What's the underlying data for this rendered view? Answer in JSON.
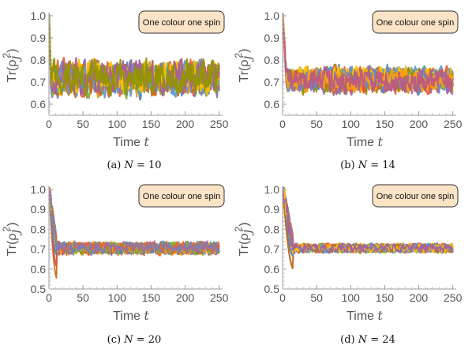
{
  "figure": {
    "colors": [
      "#5E81B5",
      "#E19C24",
      "#8FB032",
      "#EB6235",
      "#8778B3",
      "#C56E1A",
      "#5D9EC7",
      "#FFBF00",
      "#A5609D",
      "#929600",
      "#E95536",
      "#6685D9",
      "#F89F13",
      "#BC5B80",
      "#47B66D"
    ]
  },
  "chart_data": [
    {
      "type": "line",
      "panel": "a",
      "annotation": "One colour one spin",
      "caption_label": "(a)",
      "caption_var": "N",
      "caption_rest": " = 10",
      "N": 10,
      "xlabel_text": "Time ",
      "xlabel_var": "t",
      "ylabel": "Tr(ρ",
      "ylabel_sub": "j",
      "ylabel_sup": "2",
      "ylabel_end": ")",
      "xlim": [
        0,
        255
      ],
      "ylim": [
        0.55,
        1.0
      ],
      "xticks": [
        "0",
        "50",
        "100",
        "150",
        "200",
        "250"
      ],
      "xtick_values": [
        0,
        50,
        100,
        150,
        200,
        250
      ],
      "yticks": [
        "0.6",
        "0.7",
        "0.8",
        "0.9",
        "1.0"
      ],
      "ytick_values": [
        0.6,
        0.7,
        0.8,
        0.9,
        1.0
      ],
      "series_count": 10,
      "start_value": 1.0,
      "steady_mean": 0.72,
      "steady_spread": 0.06,
      "min_observed": 0.55,
      "max_observed": 0.88,
      "relax_time": 3
    },
    {
      "type": "line",
      "panel": "b",
      "annotation": "One colour one spin",
      "caption_label": "(b)",
      "caption_var": "N",
      "caption_rest": " = 14",
      "N": 14,
      "xlabel_text": "Time ",
      "xlabel_var": "t",
      "ylabel": "Tr(ρ",
      "ylabel_sub": "j",
      "ylabel_sup": "2",
      "ylabel_end": ")",
      "xlim": [
        0,
        255
      ],
      "ylim": [
        0.55,
        1.0
      ],
      "xticks": [
        "0",
        "50",
        "100",
        "150",
        "200",
        "250"
      ],
      "xtick_values": [
        0,
        50,
        100,
        150,
        200,
        250
      ],
      "yticks": [
        "0.6",
        "0.7",
        "0.8",
        "0.9",
        "1.0"
      ],
      "ytick_values": [
        0.6,
        0.7,
        0.8,
        0.9,
        1.0
      ],
      "series_count": 14,
      "start_value": 1.0,
      "steady_mean": 0.71,
      "steady_spread": 0.04,
      "min_observed": 0.56,
      "max_observed": 0.8,
      "relax_time": 6
    },
    {
      "type": "line",
      "panel": "c",
      "annotation": "One colour one spin",
      "caption_label": "(c)",
      "caption_var": "N",
      "caption_rest": " = 20",
      "N": 20,
      "xlabel_text": "Time ",
      "xlabel_var": "t",
      "ylabel": "Tr(ρ",
      "ylabel_sub": "j",
      "ylabel_sup": "2",
      "ylabel_end": ")",
      "xlim": [
        0,
        255
      ],
      "ylim": [
        0.5,
        1.0
      ],
      "xticks": [
        "0",
        "50",
        "100",
        "150",
        "200",
        "250"
      ],
      "xtick_values": [
        0,
        50,
        100,
        150,
        200,
        250
      ],
      "yticks": [
        "0.5",
        "0.6",
        "0.7",
        "0.8",
        "0.9",
        "1.0"
      ],
      "ytick_values": [
        0.5,
        0.6,
        0.7,
        0.8,
        0.9,
        1.0
      ],
      "series_count": 20,
      "start_value": 1.0,
      "steady_mean": 0.705,
      "steady_spread": 0.022,
      "min_observed": 0.55,
      "max_observed": 0.76,
      "relax_time": 12
    },
    {
      "type": "line",
      "panel": "d",
      "annotation": "One colour one spin",
      "caption_label": "(d)",
      "caption_var": "N",
      "caption_rest": " = 24",
      "N": 24,
      "xlabel_text": "Time ",
      "xlabel_var": "t",
      "ylabel": "Tr(ρ",
      "ylabel_sub": "j",
      "ylabel_sup": "2",
      "ylabel_end": ")",
      "xlim": [
        0,
        255
      ],
      "ylim": [
        0.5,
        1.0
      ],
      "xticks": [
        "0",
        "50",
        "100",
        "150",
        "200",
        "250"
      ],
      "xtick_values": [
        0,
        50,
        100,
        150,
        200,
        250
      ],
      "yticks": [
        "0.5",
        "0.6",
        "0.7",
        "0.8",
        "0.9",
        "1.0"
      ],
      "ytick_values": [
        0.5,
        0.6,
        0.7,
        0.8,
        0.9,
        1.0
      ],
      "series_count": 24,
      "start_value": 1.0,
      "steady_mean": 0.705,
      "steady_spread": 0.016,
      "min_observed": 0.55,
      "max_observed": 0.74,
      "relax_time": 16
    }
  ]
}
